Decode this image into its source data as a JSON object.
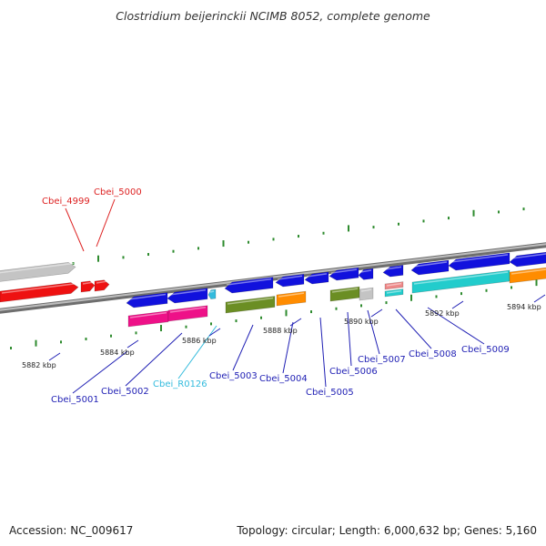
{
  "title": "Clostridium beijerinckii NCIMB 8052, complete genome",
  "footer": {
    "accession": "Accession: NC_009617",
    "summary": "Topology: circular; Length: 6,000,632 bp; Genes: 5,160"
  },
  "colors": {
    "backbone": "#8a8a8a",
    "tick": "#2e8b2e",
    "label_default": "#1f1fb4",
    "label_highlight": "#dd2222",
    "label_rna": "#33bbdd",
    "gene_blue": "#1111dd",
    "gene_red": "#ee1111",
    "gene_gray": "#c4c4c4",
    "gene_pink": "#ee1188",
    "gene_olive": "#6b8e23",
    "gene_orange": "#ff8c00",
    "gene_cyan": "#22cccc",
    "gene_salmon": "#ee8888"
  },
  "scale": {
    "unit": "kbp",
    "ticks": [
      {
        "label": "5882 kbp"
      },
      {
        "label": "5884 kbp"
      },
      {
        "label": "5886 kbp"
      },
      {
        "label": "5888 kbp"
      },
      {
        "label": "5890 kbp"
      },
      {
        "label": "5892 kbp"
      },
      {
        "label": "5894 kbp"
      }
    ]
  },
  "genes": [
    {
      "name": "Cbei_4999",
      "color": "label_highlight"
    },
    {
      "name": "Cbei_5000",
      "color": "label_highlight"
    },
    {
      "name": "Cbei_5001",
      "color": "label_default"
    },
    {
      "name": "Cbei_5002",
      "color": "label_default"
    },
    {
      "name": "Cbei_R0126",
      "color": "label_rna"
    },
    {
      "name": "Cbei_5003",
      "color": "label_default"
    },
    {
      "name": "Cbei_5004",
      "color": "label_default"
    },
    {
      "name": "Cbei_5005",
      "color": "label_default"
    },
    {
      "name": "Cbei_5006",
      "color": "label_default"
    },
    {
      "name": "Cbei_5007",
      "color": "label_default"
    },
    {
      "name": "Cbei_5008",
      "color": "label_default"
    },
    {
      "name": "Cbei_5009",
      "color": "label_default"
    }
  ]
}
